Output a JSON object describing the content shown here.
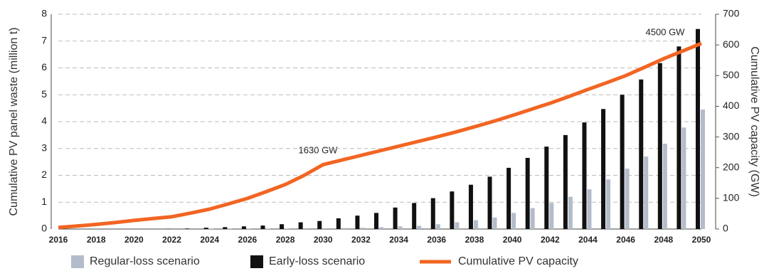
{
  "chart_data": {
    "type": "bar_line",
    "categories": [
      "2016",
      null,
      "2018",
      null,
      "2020",
      null,
      "2022",
      null,
      "2024",
      null,
      "2026",
      null,
      "2028",
      null,
      "2030",
      null,
      "2032",
      null,
      "2034",
      null,
      "2036",
      null,
      "2038",
      null,
      "2040",
      null,
      "2042",
      null,
      "2044",
      null,
      "2046",
      null,
      "2048",
      null,
      "2050"
    ],
    "y_label": "Cumulative PV panel waste (million t)",
    "y2_label": "Cumulative PV capacity (GW)",
    "ylim": [
      0,
      8
    ],
    "yticks": [
      0,
      1,
      2,
      3,
      4,
      5,
      6,
      7,
      8
    ],
    "y2lim": [
      0,
      700
    ],
    "y2ticks": [
      0,
      100,
      200,
      300,
      400,
      500,
      600,
      700
    ],
    "grid": true,
    "series": [
      {
        "name": "Regular-loss scenario",
        "color": "#b3bccb",
        "type": "bar",
        "values": [
          0,
          0,
          0,
          0,
          0,
          0,
          0,
          0,
          0.01,
          0.01,
          0.01,
          0.02,
          0.02,
          0.03,
          0.03,
          0.04,
          0.05,
          0.07,
          0.1,
          0.12,
          0.18,
          0.25,
          0.33,
          0.43,
          0.6,
          0.78,
          0.97,
          1.2,
          1.48,
          1.85,
          2.25,
          2.7,
          3.18,
          3.78,
          4.45
        ]
      },
      {
        "name": "Early-loss scenario",
        "color": "#111111",
        "type": "bar",
        "values": [
          0,
          0,
          0,
          0,
          0,
          0,
          0.01,
          0.02,
          0.05,
          0.07,
          0.1,
          0.13,
          0.18,
          0.25,
          0.3,
          0.4,
          0.5,
          0.6,
          0.8,
          0.97,
          1.15,
          1.4,
          1.65,
          1.95,
          2.28,
          2.65,
          3.07,
          3.5,
          3.97,
          4.47,
          5.0,
          5.57,
          6.18,
          6.8,
          7.45
        ]
      },
      {
        "name": "Cumulative PV capacity",
        "color": "#f26522",
        "type": "line",
        "axis": "y2",
        "values": [
          5,
          10,
          15,
          21,
          28,
          34,
          40,
          52,
          65,
          82,
          100,
          122,
          145,
          175,
          210,
          225,
          240,
          255,
          270,
          285,
          300,
          316,
          333,
          351,
          370,
          390,
          410,
          432,
          455,
          477,
          500,
          527,
          555,
          580,
          605
        ]
      }
    ],
    "annotations": [
      "1630 GW",
      "4500 GW"
    ]
  }
}
